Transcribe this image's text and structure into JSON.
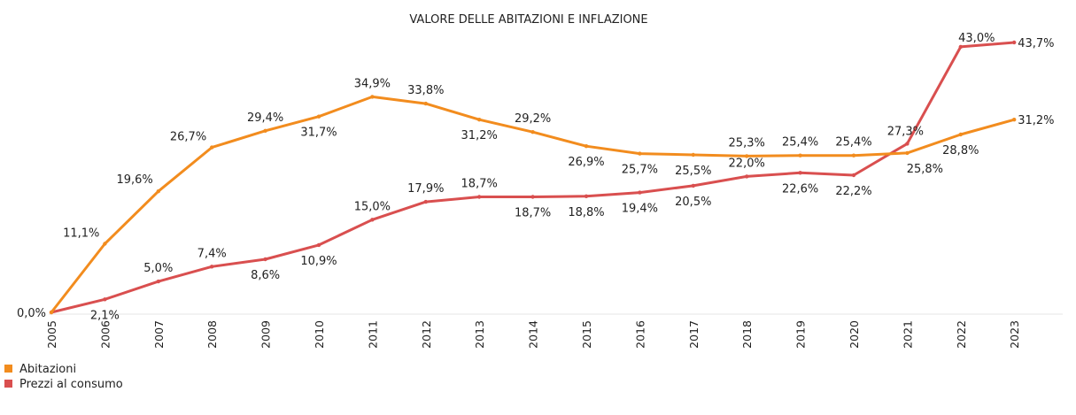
{
  "chart_data": {
    "type": "line",
    "title": "VALORE DELLE ABITAZIONI E INFLAZIONE",
    "categories": [
      "2005",
      "2006",
      "2007",
      "2008",
      "2009",
      "2010",
      "2011",
      "2012",
      "2013",
      "2014",
      "2015",
      "2016",
      "2017",
      "2018",
      "2019",
      "2020",
      "2021",
      "2022",
      "2023"
    ],
    "ylim": [
      0,
      45
    ],
    "grid": false,
    "legend_position": "bottom-left",
    "series": [
      {
        "name": "Abitazioni",
        "color": "#f28c1e",
        "values": [
          0.0,
          11.1,
          19.6,
          26.7,
          29.4,
          31.7,
          34.9,
          33.8,
          31.2,
          29.2,
          26.9,
          25.7,
          25.5,
          25.3,
          25.4,
          25.4,
          25.8,
          28.8,
          31.2
        ],
        "labels": [
          "0,0%",
          "11,1%",
          "19,6%",
          "26,7%",
          "29,4%",
          "31,7%",
          "34,9%",
          "33,8%",
          "31,2%",
          "29,2%",
          "26,9%",
          "25,7%",
          "25,5%",
          "25,3%",
          "25,4%",
          "25,4%",
          "25,8%",
          "28,8%",
          "31,2%"
        ]
      },
      {
        "name": "Prezzi al consumo",
        "color": "#d94f4f",
        "values": [
          0.0,
          2.1,
          5.0,
          7.4,
          8.6,
          10.9,
          15.0,
          17.9,
          18.7,
          18.7,
          18.8,
          19.4,
          20.5,
          22.0,
          22.6,
          22.2,
          27.3,
          43.0,
          43.7
        ],
        "labels": [
          "",
          "2,1%",
          "5,0%",
          "7,4%",
          "8,6%",
          "10,9%",
          "15,0%",
          "17,9%",
          "18,7%",
          "18,7%",
          "18,8%",
          "19,4%",
          "20,5%",
          "22,0%",
          "22,6%",
          "22,2%",
          "27,3%",
          "43,0%",
          "43,7%"
        ]
      }
    ]
  }
}
